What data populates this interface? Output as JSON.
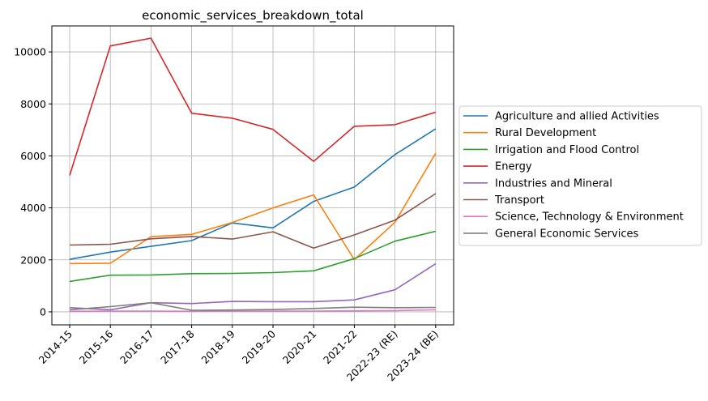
{
  "chart_data": {
    "type": "line",
    "title": "economic_services_breakdown_total",
    "xlabel": "",
    "ylabel": "",
    "categories": [
      "2014-15",
      "2015-16",
      "2016-17",
      "2017-18",
      "2018-19",
      "2019-20",
      "2020-21",
      "2021-22",
      "2022-23 (RE)",
      "2023-24 (BE)"
    ],
    "ylim": [
      -500,
      11000
    ],
    "yticks": [
      0,
      2000,
      4000,
      6000,
      8000,
      10000
    ],
    "grid": true,
    "legend_position": "right-outside",
    "series": [
      {
        "name": "Agriculture and allied Activities",
        "color": "#1f77b4",
        "values": [
          2020,
          2300,
          2520,
          2740,
          3420,
          3230,
          4250,
          4800,
          6050,
          7040
        ]
      },
      {
        "name": "Rural Development",
        "color": "#ff7f0e",
        "values": [
          1860,
          1870,
          2890,
          2980,
          3440,
          4000,
          4500,
          2010,
          3450,
          6100
        ]
      },
      {
        "name": "Irrigation and Flood Control",
        "color": "#2ca02c",
        "values": [
          1170,
          1410,
          1420,
          1470,
          1480,
          1510,
          1580,
          2050,
          2720,
          3100
        ]
      },
      {
        "name": "Energy",
        "color": "#d62728",
        "values": [
          5250,
          10230,
          10530,
          7640,
          7450,
          7020,
          5790,
          7140,
          7200,
          7680
        ]
      },
      {
        "name": "Industries and Mineral",
        "color": "#9467bd",
        "values": [
          160,
          80,
          350,
          320,
          400,
          390,
          390,
          460,
          850,
          1850
        ]
      },
      {
        "name": "Transport",
        "color": "#8c564b",
        "values": [
          2570,
          2600,
          2810,
          2900,
          2800,
          3080,
          2450,
          2960,
          3530,
          4550
        ]
      },
      {
        "name": "Science, Technology & Environment",
        "color": "#e377c2",
        "values": [
          20,
          30,
          30,
          20,
          30,
          30,
          30,
          40,
          50,
          80
        ]
      },
      {
        "name": "General Economic Services",
        "color": "#7f7f7f",
        "values": [
          80,
          200,
          350,
          60,
          70,
          90,
          130,
          180,
          160,
          170
        ]
      }
    ]
  }
}
